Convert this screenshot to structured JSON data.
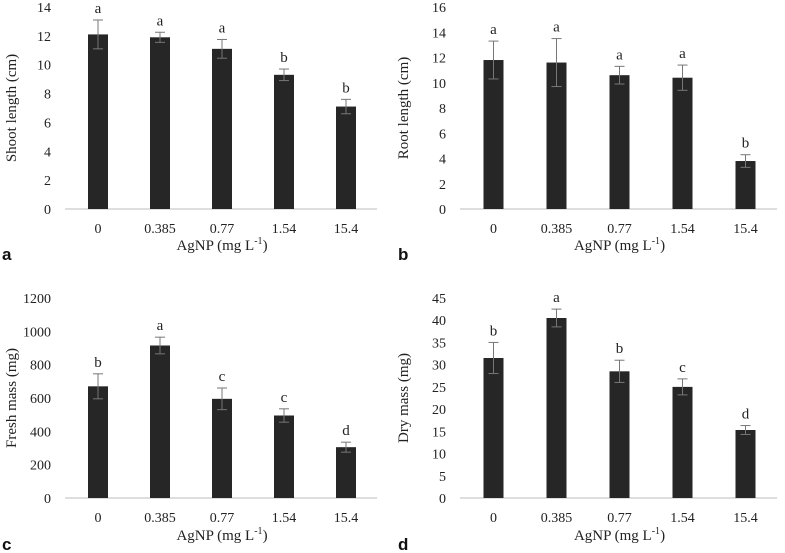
{
  "chart_data": [
    {
      "type": "bar",
      "panel": "a",
      "title": "",
      "xlabel": "AgNP (mg L",
      "xlabel_sup": "-1",
      "xlabel_end": ")",
      "ylabel": "Shoot length (cm)",
      "ylim": [
        0,
        14
      ],
      "yticks": [
        "0",
        "2",
        "4",
        "6",
        "8",
        "10",
        "12",
        "14"
      ],
      "categories": [
        "0",
        "0.385",
        "0.77",
        "1.54",
        "15.4"
      ],
      "values": [
        12.1,
        11.9,
        11.1,
        9.3,
        7.1
      ],
      "errors": [
        1.0,
        0.35,
        0.65,
        0.4,
        0.5
      ],
      "letters": [
        "a",
        "a",
        "a",
        "b",
        "b"
      ]
    },
    {
      "type": "bar",
      "panel": "b",
      "title": "",
      "xlabel": "AgNP (mg L",
      "xlabel_sup": "-1",
      "xlabel_end": ")",
      "ylabel": "Root length (cm)",
      "ylim": [
        0,
        16
      ],
      "yticks": [
        "0",
        "2",
        "4",
        "6",
        "8",
        "10",
        "12",
        "14",
        "16"
      ],
      "categories": [
        "0",
        "0.385",
        "0.77",
        "1.54",
        "15.4"
      ],
      "values": [
        11.8,
        11.6,
        10.6,
        10.4,
        3.8
      ],
      "errors": [
        1.5,
        1.9,
        0.7,
        1.0,
        0.5
      ],
      "letters": [
        "a",
        "a",
        "a",
        "a",
        "b"
      ]
    },
    {
      "type": "bar",
      "panel": "c",
      "title": "",
      "xlabel": "AgNP (mg L",
      "xlabel_sup": "-1",
      "xlabel_end": ")",
      "ylabel": "Fresh mass (mg)",
      "ylim": [
        0,
        1200
      ],
      "yticks": [
        "0",
        "200",
        "400",
        "600",
        "800",
        "1000",
        "1200"
      ],
      "categories": [
        "0",
        "0.385",
        "0.77",
        "1.54",
        "15.4"
      ],
      "values": [
        670,
        915,
        595,
        495,
        305
      ],
      "errors": [
        75,
        50,
        65,
        40,
        30
      ],
      "letters": [
        "b",
        "a",
        "c",
        "c",
        "d"
      ]
    },
    {
      "type": "bar",
      "panel": "d",
      "title": "",
      "xlabel": "AgNP (mg L",
      "xlabel_sup": "-1",
      "xlabel_end": ")",
      "ylabel": "Dry mass (mg)",
      "ylim": [
        0,
        45
      ],
      "yticks": [
        "0",
        "5",
        "10",
        "15",
        "20",
        "25",
        "30",
        "35",
        "40",
        "45"
      ],
      "categories": [
        "0",
        "0.385",
        "0.77",
        "1.54",
        "15.4"
      ],
      "values": [
        31.5,
        40.5,
        28.5,
        25.0,
        15.3
      ],
      "errors": [
        3.5,
        2.0,
        2.5,
        1.8,
        1.0
      ],
      "letters": [
        "b",
        "a",
        "b",
        "c",
        "d"
      ]
    }
  ]
}
